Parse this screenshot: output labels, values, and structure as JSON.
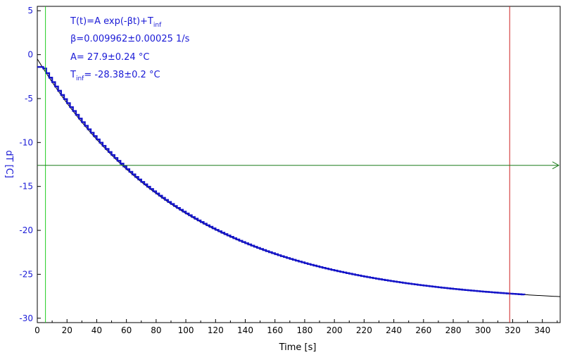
{
  "chart_data": {
    "type": "line",
    "xlabel": "Time [s]",
    "ylabel": "dT [C]",
    "xlim": [
      0,
      352
    ],
    "ylim": [
      -30.5,
      5.5
    ],
    "x_ticks": [
      0,
      20,
      40,
      60,
      80,
      100,
      120,
      140,
      160,
      180,
      200,
      220,
      240,
      260,
      280,
      300,
      320,
      340
    ],
    "y_ticks": [
      5,
      0,
      -5,
      -10,
      -15,
      -20,
      -25,
      -30
    ],
    "grid": false,
    "annotation": {
      "line1_main": "T(t)=A exp(-βt)+T",
      "line1_sub": "inf",
      "line2": "β=0.009962±0.00025 1/s",
      "line3": "A= 27.9±0.24 °C",
      "line4_main": "T",
      "line4_sub": "inf",
      "line4_rest": "= -28.38±0.2 °C"
    },
    "fit": {
      "A": 27.9,
      "beta": 0.009962,
      "T_inf": -28.38
    },
    "series": [
      {
        "kind": "measured",
        "x_start": 0,
        "x_end": 328,
        "x_step": 2
      },
      {
        "kind": "fit",
        "x_start": 0,
        "x_end": 352,
        "x_step": 1
      }
    ],
    "markers": {
      "left_cursor_x": 5.5,
      "right_cursor_x": 318,
      "horizontal_level_y": -12.6
    },
    "colors": {
      "data": "#1414c8",
      "fit": "#000000",
      "axis_text": "#1a1ad6",
      "left_cursor": "#22cc22",
      "right_cursor": "#cc2222",
      "horizontal_line": "#1a7a1a"
    }
  }
}
